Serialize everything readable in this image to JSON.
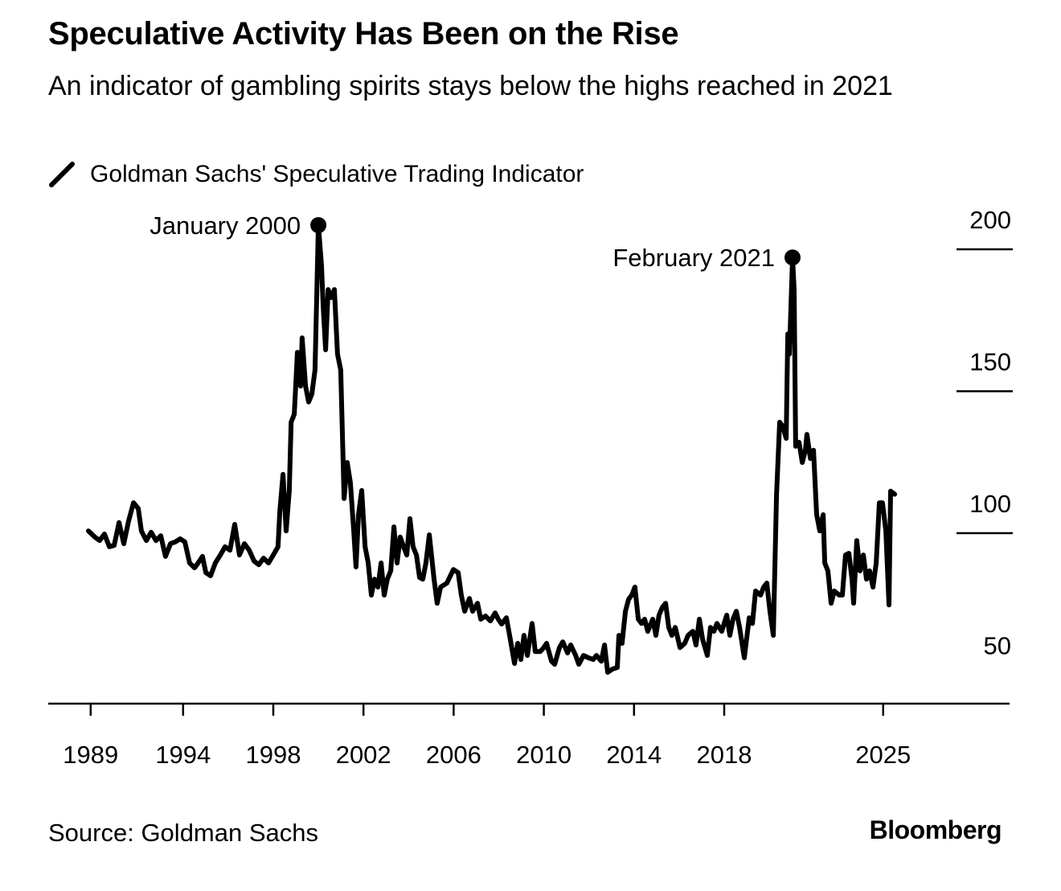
{
  "chart_data": {
    "type": "line",
    "title": "Speculative Activity Has Been on the Rise",
    "subtitle": "An indicator of gambling spirits stays below the highs reached in 2021",
    "legend": [
      "Goldman Sachs' Speculative Trading Indicator"
    ],
    "legend_placement": "top-left",
    "source": "Source: Goldman Sachs",
    "brand": "Bloomberg",
    "xlabel": "",
    "ylabel": "",
    "xlim": [
      1988.2,
      2030.6
    ],
    "ylim": [
      40,
      200
    ],
    "y_ticks": [
      {
        "label": "200",
        "value": 200
      },
      {
        "label": "150",
        "value": 150
      },
      {
        "label": "100",
        "value": 100
      },
      {
        "label": "50",
        "value": 50
      }
    ],
    "x_ticks": [
      {
        "label": "1989",
        "value": 1989.9
      },
      {
        "label": "1994",
        "value": 1994
      },
      {
        "label": "1998",
        "value": 1998
      },
      {
        "label": "2002",
        "value": 2002
      },
      {
        "label": "2006",
        "value": 2006
      },
      {
        "label": "2010",
        "value": 2010
      },
      {
        "label": "2014",
        "value": 2014
      },
      {
        "label": "2018",
        "value": 2018
      },
      {
        "label": "2025",
        "value": 2025.05
      }
    ],
    "annotations": [
      {
        "label": "January 2000",
        "x": 2000.0,
        "y": 208.5,
        "side": "left"
      },
      {
        "label": "February 2021",
        "x": 2021.03,
        "y": 197.1,
        "side": "left"
      }
    ],
    "series": [
      {
        "name": "Goldman Sachs' Speculative Trading Indicator",
        "color": "#000000",
        "points": [
          [
            1989.8,
            100.8
          ],
          [
            1990.09,
            98.6
          ],
          [
            1990.3,
            97.4
          ],
          [
            1990.51,
            99.7
          ],
          [
            1990.73,
            95.2
          ],
          [
            1990.94,
            95.7
          ],
          [
            1991.16,
            103.7
          ],
          [
            1991.37,
            96.3
          ],
          [
            1991.58,
            104.2
          ],
          [
            1991.8,
            110.7
          ],
          [
            1992.01,
            108.7
          ],
          [
            1992.15,
            100.8
          ],
          [
            1992.37,
            97.4
          ],
          [
            1992.58,
            100.3
          ],
          [
            1992.8,
            97.4
          ],
          [
            1993.01,
            99.1
          ],
          [
            1993.22,
            91.8
          ],
          [
            1993.44,
            96.3
          ],
          [
            1993.65,
            96.9
          ],
          [
            1993.87,
            98.0
          ],
          [
            1994.08,
            96.9
          ],
          [
            1994.29,
            89.5
          ],
          [
            1994.51,
            87.8
          ],
          [
            1994.72,
            90.1
          ],
          [
            1994.86,
            91.8
          ],
          [
            1995.01,
            86.1
          ],
          [
            1995.22,
            85.0
          ],
          [
            1995.43,
            89.5
          ],
          [
            1995.65,
            92.3
          ],
          [
            1995.86,
            95.2
          ],
          [
            1996.08,
            94.0
          ],
          [
            1996.29,
            103.1
          ],
          [
            1996.5,
            92.3
          ],
          [
            1996.72,
            96.3
          ],
          [
            1996.93,
            94.0
          ],
          [
            1997.15,
            90.1
          ],
          [
            1997.36,
            88.9
          ],
          [
            1997.57,
            91.2
          ],
          [
            1997.79,
            89.5
          ],
          [
            1998.0,
            92.3
          ],
          [
            1998.21,
            95.2
          ],
          [
            1998.29,
            107.6
          ],
          [
            1998.43,
            120.7
          ],
          [
            1998.57,
            100.8
          ],
          [
            1998.71,
            115.0
          ],
          [
            1998.79,
            139.1
          ],
          [
            1998.93,
            141.9
          ],
          [
            1999.07,
            163.7
          ],
          [
            1999.21,
            151.8
          ],
          [
            1999.28,
            168.8
          ],
          [
            1999.43,
            151.8
          ],
          [
            1999.57,
            146.2
          ],
          [
            1999.71,
            149.0
          ],
          [
            1999.85,
            157.5
          ],
          [
            2000.0,
            208.5
          ],
          [
            2000.14,
            194.3
          ],
          [
            2000.21,
            180.1
          ],
          [
            2000.32,
            164.6
          ],
          [
            2000.43,
            185.8
          ],
          [
            2000.57,
            183.0
          ],
          [
            2000.71,
            185.8
          ],
          [
            2000.85,
            163.1
          ],
          [
            2000.99,
            157.5
          ],
          [
            2001.14,
            112.2
          ],
          [
            2001.28,
            124.9
          ],
          [
            2001.42,
            117.8
          ],
          [
            2001.57,
            100.8
          ],
          [
            2001.67,
            88.1
          ],
          [
            2001.78,
            106.5
          ],
          [
            2001.92,
            115.0
          ],
          [
            2002.07,
            95.2
          ],
          [
            2002.21,
            89.5
          ],
          [
            2002.35,
            78.2
          ],
          [
            2002.49,
            83.8
          ],
          [
            2002.64,
            81.0
          ],
          [
            2002.78,
            89.5
          ],
          [
            2002.92,
            78.2
          ],
          [
            2003.06,
            83.8
          ],
          [
            2003.21,
            86.7
          ],
          [
            2003.35,
            102.2
          ],
          [
            2003.49,
            89.5
          ],
          [
            2003.63,
            98.6
          ],
          [
            2003.78,
            95.2
          ],
          [
            2003.92,
            92.3
          ],
          [
            2004.06,
            105.1
          ],
          [
            2004.2,
            95.2
          ],
          [
            2004.35,
            92.3
          ],
          [
            2004.49,
            84.4
          ],
          [
            2004.63,
            83.8
          ],
          [
            2004.77,
            89.5
          ],
          [
            2004.92,
            99.4
          ],
          [
            2005.13,
            83.8
          ],
          [
            2005.27,
            75.3
          ],
          [
            2005.42,
            81.0
          ],
          [
            2005.7,
            82.4
          ],
          [
            2005.99,
            87.2
          ],
          [
            2006.2,
            86.1
          ],
          [
            2006.34,
            78.2
          ],
          [
            2006.49,
            72.5
          ],
          [
            2006.7,
            77.0
          ],
          [
            2006.84,
            72.5
          ],
          [
            2007.06,
            75.3
          ],
          [
            2007.2,
            69.7
          ],
          [
            2007.41,
            70.8
          ],
          [
            2007.63,
            69.1
          ],
          [
            2007.84,
            71.9
          ],
          [
            2007.98,
            69.7
          ],
          [
            2008.13,
            68.0
          ],
          [
            2008.34,
            70.2
          ],
          [
            2008.48,
            64.0
          ],
          [
            2008.7,
            54.1
          ],
          [
            2008.84,
            61.2
          ],
          [
            2008.98,
            55.5
          ],
          [
            2009.12,
            64.0
          ],
          [
            2009.27,
            56.9
          ],
          [
            2009.48,
            68.2
          ],
          [
            2009.62,
            58.3
          ],
          [
            2009.84,
            58.3
          ],
          [
            2009.98,
            59.5
          ],
          [
            2010.12,
            61.2
          ],
          [
            2010.34,
            54.9
          ],
          [
            2010.48,
            53.8
          ],
          [
            2010.69,
            59.7
          ],
          [
            2010.84,
            61.7
          ],
          [
            2011.05,
            57.8
          ],
          [
            2011.19,
            60.6
          ],
          [
            2011.41,
            56.9
          ],
          [
            2011.55,
            53.8
          ],
          [
            2011.76,
            56.9
          ],
          [
            2011.98,
            56.1
          ],
          [
            2012.19,
            55.5
          ],
          [
            2012.33,
            56.9
          ],
          [
            2012.55,
            54.9
          ],
          [
            2012.69,
            60.6
          ],
          [
            2012.83,
            51.0
          ],
          [
            2013.04,
            52.1
          ],
          [
            2013.26,
            52.7
          ],
          [
            2013.33,
            64.0
          ],
          [
            2013.47,
            61.2
          ],
          [
            2013.62,
            72.5
          ],
          [
            2013.76,
            76.7
          ],
          [
            2013.9,
            78.2
          ],
          [
            2014.04,
            81.0
          ],
          [
            2014.19,
            69.7
          ],
          [
            2014.33,
            68.2
          ],
          [
            2014.47,
            69.7
          ],
          [
            2014.61,
            65.4
          ],
          [
            2014.83,
            69.7
          ],
          [
            2014.97,
            64.0
          ],
          [
            2015.11,
            71.1
          ],
          [
            2015.26,
            73.9
          ],
          [
            2015.4,
            75.3
          ],
          [
            2015.54,
            66.8
          ],
          [
            2015.68,
            64.0
          ],
          [
            2015.83,
            66.8
          ],
          [
            2016.04,
            59.7
          ],
          [
            2016.25,
            61.2
          ],
          [
            2016.4,
            64.0
          ],
          [
            2016.61,
            65.4
          ],
          [
            2016.75,
            60.6
          ],
          [
            2016.9,
            69.7
          ],
          [
            2017.04,
            62.6
          ],
          [
            2017.25,
            56.9
          ],
          [
            2017.39,
            66.8
          ],
          [
            2017.54,
            65.4
          ],
          [
            2017.68,
            68.2
          ],
          [
            2017.89,
            65.4
          ],
          [
            2018.11,
            71.1
          ],
          [
            2018.25,
            64.0
          ],
          [
            2018.39,
            69.7
          ],
          [
            2018.54,
            72.5
          ],
          [
            2018.68,
            66.8
          ],
          [
            2018.89,
            56.1
          ],
          [
            2019.11,
            70.2
          ],
          [
            2019.25,
            68.2
          ],
          [
            2019.39,
            79.6
          ],
          [
            2019.61,
            78.2
          ],
          [
            2019.75,
            81.0
          ],
          [
            2019.89,
            82.4
          ],
          [
            2020.03,
            72.5
          ],
          [
            2020.18,
            64.0
          ],
          [
            2020.32,
            113.6
          ],
          [
            2020.46,
            139.1
          ],
          [
            2020.6,
            137.6
          ],
          [
            2020.75,
            133.4
          ],
          [
            2020.82,
            170.2
          ],
          [
            2020.89,
            163.1
          ],
          [
            2021.03,
            197.1
          ],
          [
            2021.1,
            185.8
          ],
          [
            2021.17,
            130.6
          ],
          [
            2021.32,
            132.0
          ],
          [
            2021.46,
            124.9
          ],
          [
            2021.6,
            129.2
          ],
          [
            2021.67,
            134.8
          ],
          [
            2021.82,
            126.3
          ],
          [
            2021.96,
            129.2
          ],
          [
            2022.1,
            106.5
          ],
          [
            2022.24,
            100.8
          ],
          [
            2022.39,
            106.5
          ],
          [
            2022.46,
            89.5
          ],
          [
            2022.6,
            86.7
          ],
          [
            2022.74,
            75.3
          ],
          [
            2022.88,
            79.6
          ],
          [
            2023.1,
            78.2
          ],
          [
            2023.24,
            78.2
          ],
          [
            2023.38,
            92.3
          ],
          [
            2023.53,
            92.9
          ],
          [
            2023.67,
            83.8
          ],
          [
            2023.74,
            75.3
          ],
          [
            2023.88,
            97.4
          ],
          [
            2024.02,
            86.7
          ],
          [
            2024.17,
            92.3
          ],
          [
            2024.31,
            83.8
          ],
          [
            2024.45,
            86.7
          ],
          [
            2024.6,
            81.0
          ],
          [
            2024.74,
            89.5
          ],
          [
            2024.88,
            110.7
          ],
          [
            2025.02,
            110.7
          ],
          [
            2025.17,
            100.8
          ],
          [
            2025.31,
            74.7
          ],
          [
            2025.38,
            114.8
          ],
          [
            2025.56,
            113.7
          ]
        ]
      }
    ]
  }
}
